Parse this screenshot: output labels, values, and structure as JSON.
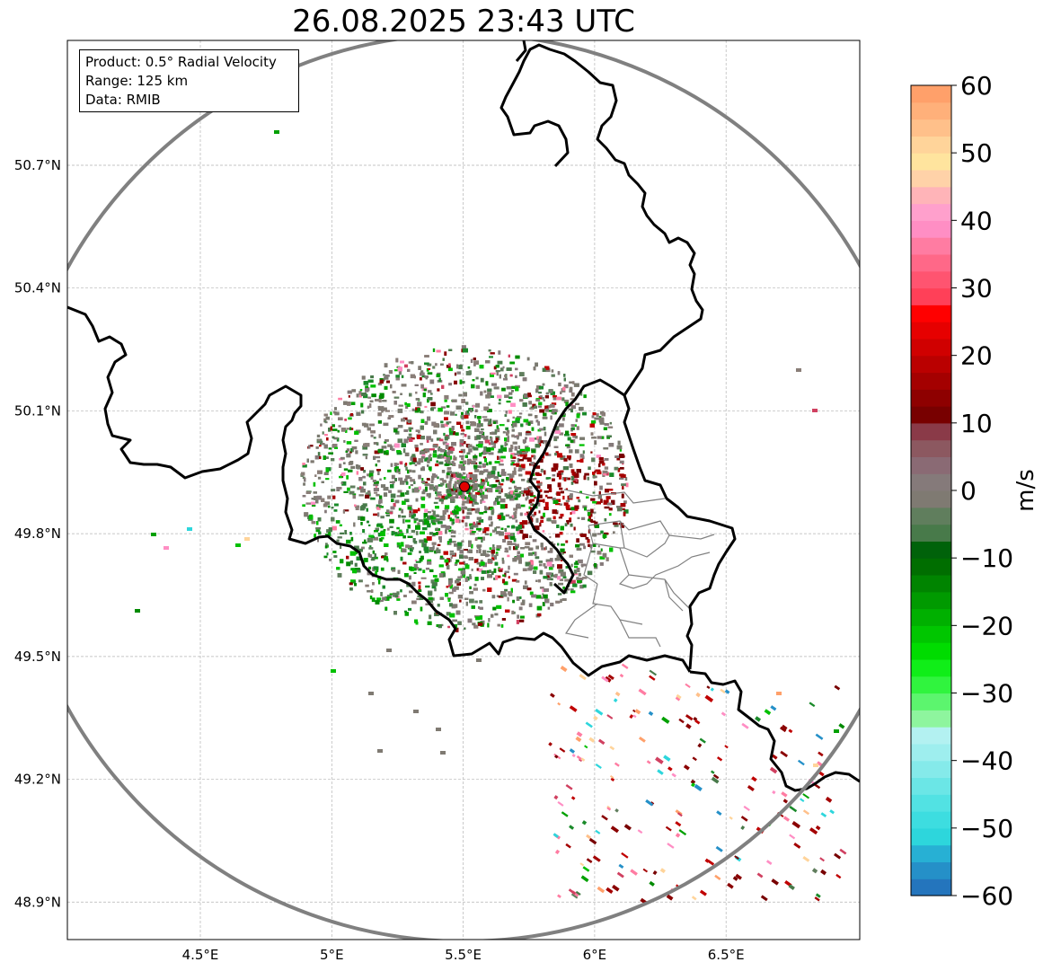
{
  "title": "26.08.2025 23:43 UTC",
  "info": {
    "product": "Product: 0.5° Radial Velocity",
    "range": "Range: 125 km",
    "data": "Data: RMIB"
  },
  "map": {
    "lat_ticks": [
      {
        "value": 50.7,
        "label": "50.7°N"
      },
      {
        "value": 50.4,
        "label": "50.4°N"
      },
      {
        "value": 50.1,
        "label": "50.1°N"
      },
      {
        "value": 49.8,
        "label": "49.8°N"
      },
      {
        "value": 49.5,
        "label": "49.5°N"
      },
      {
        "value": 49.2,
        "label": "49.2°N"
      },
      {
        "value": 48.9,
        "label": "48.9°N"
      }
    ],
    "lon_ticks": [
      {
        "value": 4.5,
        "label": "4.5°E"
      },
      {
        "value": 5.0,
        "label": "5°E"
      },
      {
        "value": 5.5,
        "label": "5.5°E"
      },
      {
        "value": 6.0,
        "label": "6°E"
      },
      {
        "value": 6.5,
        "label": "6.5°E"
      }
    ],
    "radar_site": {
      "lon": 5.505,
      "lat": 49.915
    },
    "colors": {
      "border": "#000000",
      "range_ring": "#808080",
      "grid": "#b4b4b4",
      "admin": "#808080",
      "site_marker": "#e00000"
    }
  },
  "colorbar": {
    "label": "m/s",
    "min": -60,
    "max": 60,
    "ticks": [
      60,
      50,
      40,
      30,
      20,
      10,
      0,
      -10,
      -20,
      -30,
      -40,
      -50,
      -60
    ],
    "tick_labels": [
      "60",
      "50",
      "40",
      "30",
      "20",
      "10",
      "0",
      "−10",
      "−20",
      "−30",
      "−40",
      "−50",
      "−60"
    ],
    "colors": [
      "#2475bd",
      "#2590c8",
      "#27b0d4",
      "#2dd6dc",
      "#3ddde0",
      "#52e2e3",
      "#6be6e6",
      "#85eaea",
      "#9eeeee",
      "#b3f1f1",
      "#8ef59e",
      "#5cf56e",
      "#30f43e",
      "#10ee18",
      "#00dc00",
      "#00c600",
      "#00b000",
      "#009a00",
      "#008400",
      "#006e00",
      "#00620a",
      "#487a4a",
      "#607e5d",
      "#7f7a72",
      "#857a7a",
      "#8a6a74",
      "#8c5860",
      "#8a3a48",
      "#780000",
      "#8e0000",
      "#a40000",
      "#ba0000",
      "#d00000",
      "#e60000",
      "#ff0000",
      "#ff4058",
      "#ff5470",
      "#ff6888",
      "#ff7ca2",
      "#ff8ec4",
      "#ffa0cc",
      "#ffb4b8",
      "#ffd2a8",
      "#ffe49e",
      "#ffd49a",
      "#ffc08a",
      "#ffb07a",
      "#ffa06a"
    ]
  }
}
